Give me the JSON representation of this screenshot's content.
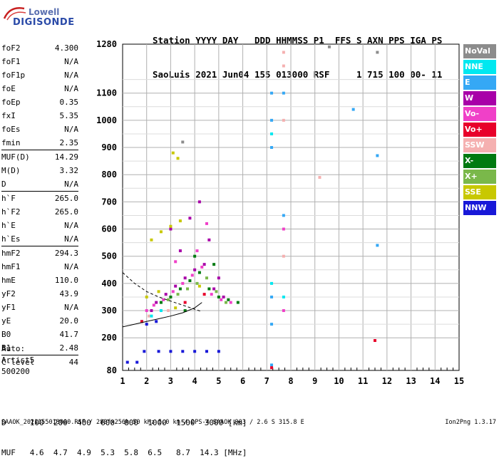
{
  "logo": {
    "line1": "Lowell",
    "line2": "DIGISONDE"
  },
  "header": {
    "labels": "Station YYYY DAY   DDD HHMMSS P1  FFS S AXN PPS IGA PS",
    "values": "SaoLuis 2021 Jun04 155 013000 RSF     1 715 100 00- 11"
  },
  "params": [
    {
      "k": "foF2",
      "v": "4.300"
    },
    {
      "k": "foF1",
      "v": "N/A"
    },
    {
      "k": "foF1p",
      "v": "N/A"
    },
    {
      "k": "foE",
      "v": "N/A"
    },
    {
      "k": "foEp",
      "v": "0.35"
    },
    {
      "k": "fxI",
      "v": "5.35"
    },
    {
      "k": "foEs",
      "v": "N/A"
    },
    {
      "k": "fmin",
      "v": "2.35"
    },
    {
      "k": "MUF(D)",
      "v": "14.29",
      "sep": true
    },
    {
      "k": "M(D)",
      "v": "3.32"
    },
    {
      "k": "D",
      "v": "N/A"
    },
    {
      "k": "h`F",
      "v": "265.0",
      "sep": true
    },
    {
      "k": "h`F2",
      "v": "265.0"
    },
    {
      "k": "h`E",
      "v": "N/A"
    },
    {
      "k": "h`Es",
      "v": "N/A"
    },
    {
      "k": "hmF2",
      "v": "294.3",
      "sep": true
    },
    {
      "k": "hmF1",
      "v": "N/A"
    },
    {
      "k": "hmE",
      "v": "110.0"
    },
    {
      "k": "yF2",
      "v": "43.9"
    },
    {
      "k": "yF1",
      "v": "N/A"
    },
    {
      "k": "yE",
      "v": "20.0"
    },
    {
      "k": "B0",
      "v": "41.7"
    },
    {
      "k": "B1",
      "v": "2.48"
    },
    {
      "k": "C-level",
      "v": "44",
      "sep": true
    }
  ],
  "auto": {
    "l1": "Auto:",
    "l2": "Artist5",
    "l3": "500200"
  },
  "legend": [
    {
      "label": "NoVal",
      "color": "#8c8c8c"
    },
    {
      "label": "NNE",
      "color": "#00e8f0"
    },
    {
      "label": "E",
      "color": "#35a8f5"
    },
    {
      "label": "W",
      "color": "#a800a8"
    },
    {
      "label": "Vo-",
      "color": "#f040c8"
    },
    {
      "label": "Vo+",
      "color": "#e8002a"
    },
    {
      "label": "SSW",
      "color": "#f5b0b0"
    },
    {
      "label": "X-",
      "color": "#007a10"
    },
    {
      "label": "X+",
      "color": "#7ab84a"
    },
    {
      "label": "SSE",
      "color": "#c8c800"
    },
    {
      "label": "NNW",
      "color": "#1818d8"
    }
  ],
  "dmuf": {
    "d": "D     100  200  400  600  800  1000  1500  3000 [km]",
    "muf": "MUF   4.6  4.7  4.9  5.3  5.8  6.5   8.7  14.3 [MHz]"
  },
  "footer": {
    "left": "SAAOK_2021155013000.RSF / 280fx256h 50 kHz 5.0 km / DPS-4 SAAOK 903 / 2.6 S 315.8 E",
    "right": "Ion2Png 1.3.17"
  },
  "chart_data": {
    "type": "scatter",
    "title": "",
    "xlabel": "",
    "ylabel": "",
    "xlim": [
      1,
      15
    ],
    "ylim": [
      80,
      1280
    ],
    "x_ticks": [
      1,
      2,
      3,
      4,
      5,
      6,
      7,
      8,
      9,
      10,
      11,
      12,
      13,
      14,
      15
    ],
    "y_ticks": [
      80,
      200,
      300,
      400,
      500,
      600,
      700,
      800,
      900,
      1000,
      1100,
      1280
    ],
    "grid": true,
    "series": [
      {
        "name": "W",
        "points": [
          [
            2.4,
            330
          ],
          [
            2.8,
            360
          ],
          [
            3.2,
            390
          ],
          [
            3.6,
            420
          ],
          [
            4.0,
            450
          ],
          [
            4.4,
            470
          ],
          [
            4.8,
            380
          ],
          [
            5.2,
            350
          ],
          [
            3.0,
            600
          ],
          [
            3.8,
            640
          ],
          [
            4.2,
            700
          ],
          [
            2.2,
            300
          ],
          [
            3.4,
            520
          ],
          [
            4.6,
            560
          ],
          [
            5.0,
            420
          ]
        ]
      },
      {
        "name": "Vo-",
        "points": [
          [
            2.3,
            320
          ],
          [
            2.7,
            340
          ],
          [
            3.1,
            370
          ],
          [
            3.5,
            400
          ],
          [
            3.9,
            430
          ],
          [
            4.3,
            460
          ],
          [
            4.7,
            360
          ],
          [
            5.1,
            340
          ],
          [
            5.5,
            330
          ],
          [
            3.2,
            480
          ],
          [
            4.1,
            520
          ],
          [
            2.0,
            300
          ],
          [
            4.5,
            620
          ],
          [
            7.7,
            300
          ],
          [
            7.7,
            600
          ]
        ]
      },
      {
        "name": "X-",
        "points": [
          [
            2.6,
            330
          ],
          [
            3.0,
            350
          ],
          [
            3.4,
            380
          ],
          [
            3.8,
            410
          ],
          [
            4.2,
            440
          ],
          [
            4.6,
            380
          ],
          [
            5.0,
            350
          ],
          [
            5.4,
            340
          ],
          [
            5.8,
            330
          ],
          [
            4.0,
            500
          ],
          [
            4.8,
            470
          ],
          [
            3.6,
            300
          ]
        ]
      },
      {
        "name": "SSE",
        "points": [
          [
            2.2,
            560
          ],
          [
            2.6,
            590
          ],
          [
            3.0,
            610
          ],
          [
            3.4,
            630
          ],
          [
            2.0,
            350
          ],
          [
            2.5,
            370
          ],
          [
            3.2,
            310
          ],
          [
            4.2,
            390
          ],
          [
            3.1,
            880
          ],
          [
            3.3,
            860
          ]
        ]
      },
      {
        "name": "NNW",
        "points": [
          [
            1.9,
            150
          ],
          [
            2.5,
            150
          ],
          [
            3.0,
            150
          ],
          [
            3.5,
            150
          ],
          [
            4.0,
            150
          ],
          [
            4.5,
            150
          ],
          [
            5.0,
            150
          ],
          [
            1.2,
            110
          ],
          [
            1.6,
            110
          ],
          [
            2.0,
            250
          ],
          [
            2.4,
            260
          ]
        ]
      },
      {
        "name": "E",
        "points": [
          [
            7.2,
            1100
          ],
          [
            7.2,
            1000
          ],
          [
            7.2,
            900
          ],
          [
            7.2,
            350
          ],
          [
            7.2,
            250
          ],
          [
            7.2,
            100
          ],
          [
            11.6,
            870
          ],
          [
            11.6,
            540
          ],
          [
            10.6,
            1040
          ],
          [
            7.7,
            1100
          ],
          [
            7.7,
            650
          ]
        ]
      },
      {
        "name": "SSW",
        "points": [
          [
            7.7,
            1250
          ],
          [
            7.7,
            1200
          ],
          [
            7.7,
            1000
          ],
          [
            7.7,
            500
          ],
          [
            9.2,
            790
          ],
          [
            2.1,
            280
          ],
          [
            2.9,
            300
          ]
        ]
      },
      {
        "name": "X+",
        "points": [
          [
            2.9,
            340
          ],
          [
            3.3,
            360
          ],
          [
            3.7,
            380
          ],
          [
            4.1,
            400
          ],
          [
            4.5,
            420
          ],
          [
            4.9,
            370
          ],
          [
            5.3,
            330
          ]
        ]
      },
      {
        "name": "NNE",
        "points": [
          [
            1.8,
            260
          ],
          [
            2.2,
            280
          ],
          [
            2.6,
            300
          ],
          [
            7.2,
            950
          ],
          [
            7.2,
            400
          ],
          [
            7.7,
            350
          ]
        ]
      },
      {
        "name": "Vo+",
        "points": [
          [
            1.8,
            260
          ],
          [
            11.5,
            190
          ],
          [
            7.2,
            90
          ],
          [
            3.6,
            330
          ],
          [
            4.4,
            360
          ]
        ]
      },
      {
        "name": "NoVal",
        "points": [
          [
            9.6,
            1270
          ],
          [
            11.6,
            1250
          ],
          [
            3.5,
            920
          ]
        ]
      }
    ],
    "traces": [
      {
        "name": "virtual-height-trace",
        "points": [
          [
            1.0,
            240
          ],
          [
            1.5,
            250
          ],
          [
            2.0,
            260
          ],
          [
            2.5,
            270
          ],
          [
            3.0,
            280
          ],
          [
            3.5,
            292
          ],
          [
            4.0,
            310
          ],
          [
            4.3,
            330
          ]
        ]
      },
      {
        "name": "profile-trace",
        "points": [
          [
            1.0,
            440
          ],
          [
            1.5,
            400
          ],
          [
            2.0,
            370
          ],
          [
            2.5,
            350
          ],
          [
            3.0,
            335
          ],
          [
            3.5,
            320
          ],
          [
            4.0,
            305
          ],
          [
            4.3,
            296
          ]
        ]
      }
    ]
  }
}
